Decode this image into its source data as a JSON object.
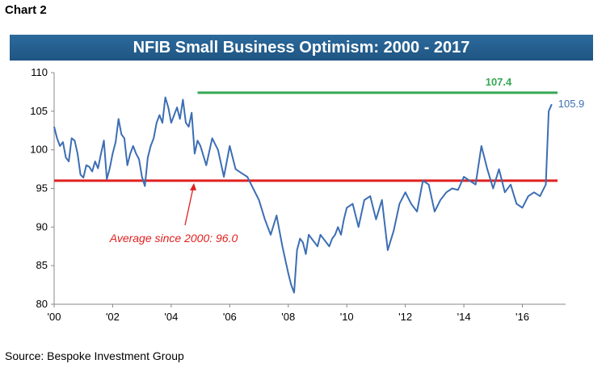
{
  "header": {
    "chart_number": "Chart 2"
  },
  "footer": {
    "source": "Source: Bespoke Investment Group"
  },
  "chart_data": {
    "type": "line",
    "title": "NFIB Small Business Optimism: 2000 - 2017",
    "xlabel": "",
    "ylabel": "",
    "xlim": [
      2000,
      2017.2
    ],
    "ylim": [
      80,
      110
    ],
    "yticks": [
      80,
      85,
      90,
      95,
      100,
      105,
      110
    ],
    "xticks": [
      {
        "value": 2000,
        "label": "'00"
      },
      {
        "value": 2002,
        "label": "'02"
      },
      {
        "value": 2004,
        "label": "'04"
      },
      {
        "value": 2006,
        "label": "'06"
      },
      {
        "value": 2008,
        "label": "'08"
      },
      {
        "value": 2010,
        "label": "'10"
      },
      {
        "value": 2012,
        "label": "'12"
      },
      {
        "value": 2014,
        "label": "'14"
      },
      {
        "value": 2016,
        "label": "'16"
      }
    ],
    "grid": false,
    "series": [
      {
        "color": "#3c6eb4",
        "x": [
          2000.0,
          2000.1,
          2000.2,
          2000.3,
          2000.4,
          2000.5,
          2000.6,
          2000.7,
          2000.8,
          2000.9,
          2001.0,
          2001.1,
          2001.2,
          2001.3,
          2001.4,
          2001.5,
          2001.6,
          2001.7,
          2001.8,
          2001.9,
          2002.0,
          2002.1,
          2002.2,
          2002.3,
          2002.4,
          2002.5,
          2002.6,
          2002.7,
          2002.8,
          2002.9,
          2003.0,
          2003.1,
          2003.2,
          2003.3,
          2003.4,
          2003.5,
          2003.6,
          2003.7,
          2003.8,
          2003.9,
          2004.0,
          2004.1,
          2004.2,
          2004.3,
          2004.4,
          2004.5,
          2004.6,
          2004.7,
          2004.8,
          2004.9,
          2005.0,
          2005.2,
          2005.4,
          2005.6,
          2005.8,
          2006.0,
          2006.2,
          2006.4,
          2006.6,
          2006.8,
          2007.0,
          2007.2,
          2007.4,
          2007.6,
          2007.8,
          2008.0,
          2008.1,
          2008.2,
          2008.3,
          2008.4,
          2008.5,
          2008.6,
          2008.7,
          2008.8,
          2008.9,
          2009.0,
          2009.1,
          2009.2,
          2009.3,
          2009.4,
          2009.5,
          2009.6,
          2009.7,
          2009.8,
          2009.9,
          2010.0,
          2010.2,
          2010.4,
          2010.6,
          2010.8,
          2011.0,
          2011.2,
          2011.4,
          2011.6,
          2011.8,
          2012.0,
          2012.2,
          2012.4,
          2012.6,
          2012.8,
          2013.0,
          2013.2,
          2013.4,
          2013.6,
          2013.8,
          2014.0,
          2014.2,
          2014.4,
          2014.6,
          2014.8,
          2015.0,
          2015.2,
          2015.4,
          2015.6,
          2015.8,
          2016.0,
          2016.2,
          2016.4,
          2016.6,
          2016.8,
          2016.9,
          2017.0
        ],
        "values": [
          103.0,
          101.5,
          100.5,
          101.0,
          99.0,
          98.5,
          101.5,
          101.2,
          99.5,
          96.8,
          96.4,
          98.0,
          97.8,
          97.2,
          98.5,
          97.6,
          99.5,
          101.2,
          96.2,
          97.6,
          99.5,
          101.0,
          104.0,
          102.0,
          101.5,
          98.0,
          99.5,
          100.5,
          99.5,
          98.8,
          96.5,
          95.3,
          99.0,
          100.5,
          101.5,
          103.5,
          104.5,
          103.5,
          106.8,
          105.5,
          103.5,
          104.5,
          105.5,
          104.0,
          106.5,
          103.5,
          103.0,
          104.8,
          99.5,
          101.2,
          100.5,
          98.0,
          101.5,
          100.0,
          96.5,
          100.5,
          97.5,
          97.0,
          96.5,
          95.0,
          93.5,
          91.0,
          89.0,
          91.5,
          87.5,
          84.0,
          82.5,
          81.5,
          87.0,
          88.5,
          88.0,
          86.5,
          89.0,
          88.5,
          88.0,
          87.5,
          89.0,
          88.5,
          88.0,
          87.5,
          88.5,
          89.0,
          90.0,
          89.0,
          91.0,
          92.5,
          93.0,
          90.0,
          93.5,
          94.0,
          91.0,
          93.5,
          87.0,
          89.5,
          93.0,
          94.5,
          93.0,
          92.0,
          96.0,
          95.5,
          92.0,
          93.5,
          94.5,
          95.0,
          94.8,
          96.5,
          96.0,
          95.5,
          100.5,
          97.5,
          95.0,
          97.5,
          94.5,
          95.5,
          93.0,
          92.5,
          94.0,
          94.5,
          94.0,
          95.5,
          105.0,
          105.9
        ]
      }
    ],
    "reference_lines": [
      {
        "value": 96.0,
        "color": "#e02020",
        "label": "Average since 2000:  96.0"
      },
      {
        "value": 107.4,
        "x_start": 2004.9,
        "color": "#36a853",
        "label": "107.4"
      }
    ],
    "annotations": [
      {
        "text": "105.9",
        "color": "#3c6eb4"
      }
    ]
  }
}
